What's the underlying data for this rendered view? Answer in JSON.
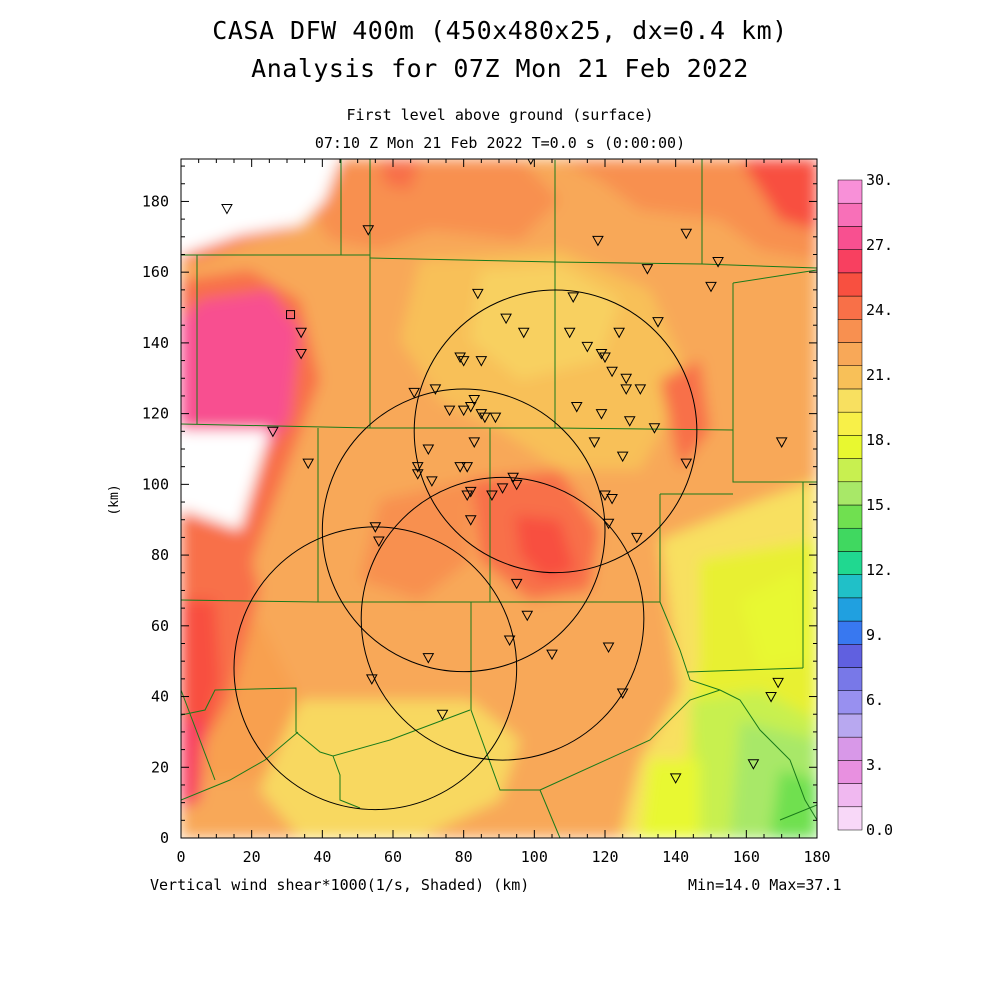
{
  "header": {
    "title_line1": "CASA DFW 400m (450x480x25, dx=0.4 km)",
    "title_line2": "Analysis for 07Z Mon 21 Feb 2022",
    "subtitle_line1": "First level above ground (surface)",
    "subtitle_line2": "07:10 Z Mon 21 Feb 2022    T=0.0 s (0:00:00)"
  },
  "footer": {
    "field_label": "Vertical wind shear*1000(1/s, Shaded)  (km)",
    "minmax": "Min=14.0 Max=37.1"
  },
  "chart_data": {
    "type": "heatmap",
    "title": "CASA DFW 400m (450x480x25, dx=0.4 km)",
    "ylabel": "(km)",
    "xlim": [
      0,
      180
    ],
    "ylim": [
      0,
      192
    ],
    "x_ticks": [
      "0",
      "20",
      "40",
      "60",
      "80",
      "100",
      "120",
      "140",
      "160",
      "180"
    ],
    "y_ticks": [
      "0",
      "20",
      "40",
      "60",
      "80",
      "100",
      "120",
      "140",
      "160",
      "180"
    ],
    "colorbar": {
      "min": 0,
      "max": 30,
      "step": 1.5,
      "labels": [
        "0.0",
        "3.",
        "6.",
        "9.",
        "12.",
        "15.",
        "18.",
        "21.",
        "24.",
        "27.",
        "30."
      ],
      "colors": [
        "#f8d8f8",
        "#f0b8f0",
        "#e890e0",
        "#d898e8",
        "#b8a8f0",
        "#9890f0",
        "#7878e8",
        "#6060e0",
        "#3878f0",
        "#20a0e0",
        "#20c0c8",
        "#20d890",
        "#40d860",
        "#70e050",
        "#a8e868",
        "#c8f050",
        "#e8f830",
        "#f8f048",
        "#f8e060",
        "#f8c058",
        "#f8a858",
        "#f89050",
        "#f87048",
        "#f85040",
        "#f84060",
        "#f85090",
        "#f870b8",
        "#f890d8"
      ]
    },
    "stations": [
      [
        13,
        178
      ],
      [
        31,
        148
      ],
      [
        34,
        143
      ],
      [
        34,
        137
      ],
      [
        26,
        115
      ],
      [
        36,
        106
      ],
      [
        53,
        172
      ],
      [
        55,
        88
      ],
      [
        56,
        84
      ],
      [
        54,
        45
      ],
      [
        66,
        126
      ],
      [
        67,
        105
      ],
      [
        67,
        103
      ],
      [
        70,
        110
      ],
      [
        71,
        101
      ],
      [
        72,
        127
      ],
      [
        70,
        51
      ],
      [
        74,
        35
      ],
      [
        76,
        121
      ],
      [
        79,
        136
      ],
      [
        80,
        135
      ],
      [
        79,
        105
      ],
      [
        81,
        105
      ],
      [
        80,
        121
      ],
      [
        82,
        122
      ],
      [
        83,
        124
      ],
      [
        82,
        98
      ],
      [
        81,
        97
      ],
      [
        82,
        90
      ],
      [
        83,
        112
      ],
      [
        85,
        120
      ],
      [
        86,
        119
      ],
      [
        84,
        154
      ],
      [
        85,
        135
      ],
      [
        88,
        97
      ],
      [
        89,
        119
      ],
      [
        91,
        99
      ],
      [
        92,
        147
      ],
      [
        93,
        56
      ],
      [
        94,
        102
      ],
      [
        95,
        100
      ],
      [
        95,
        72
      ],
      [
        97,
        143
      ],
      [
        98,
        63
      ],
      [
        99,
        192
      ],
      [
        105,
        52
      ],
      [
        110,
        143
      ],
      [
        111,
        153
      ],
      [
        112,
        122
      ],
      [
        115,
        139
      ],
      [
        117,
        112
      ],
      [
        118,
        169
      ],
      [
        119,
        120
      ],
      [
        119,
        137
      ],
      [
        120,
        136
      ],
      [
        120,
        97
      ],
      [
        121,
        89
      ],
      [
        121,
        54
      ],
      [
        122,
        132
      ],
      [
        122,
        96
      ],
      [
        124,
        143
      ],
      [
        125,
        108
      ],
      [
        125,
        41
      ],
      [
        126,
        127
      ],
      [
        126,
        130
      ],
      [
        127,
        118
      ],
      [
        129,
        85
      ],
      [
        130,
        127
      ],
      [
        132,
        161
      ],
      [
        134,
        116
      ],
      [
        135,
        146
      ],
      [
        140,
        17
      ],
      [
        143,
        106
      ],
      [
        143,
        171
      ],
      [
        150,
        156
      ],
      [
        152,
        163
      ],
      [
        162,
        21
      ],
      [
        167,
        40
      ],
      [
        169,
        44
      ],
      [
        170,
        112
      ]
    ],
    "square_station": [
      31,
      148
    ],
    "range_rings": [
      {
        "center": [
          55,
          48
        ],
        "radius": 40
      },
      {
        "center": [
          80,
          87
        ],
        "radius": 40
      },
      {
        "center": [
          106,
          115
        ],
        "radius": 40
      },
      {
        "center": [
          91,
          62
        ],
        "radius": 40
      }
    ],
    "grid": false
  },
  "colors": {
    "border": "#1a7a1a",
    "frame": "#000000"
  }
}
